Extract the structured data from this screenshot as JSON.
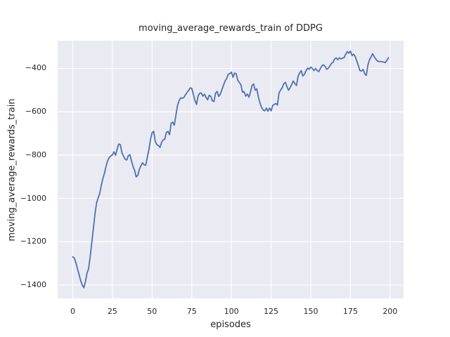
{
  "chart_data": {
    "type": "line",
    "title": "moving_average_rewards_train of DDPG",
    "xlabel": "episodes",
    "ylabel": "moving_average_rewards_train",
    "x_ticks": [
      0,
      25,
      50,
      75,
      100,
      125,
      150,
      175,
      200
    ],
    "y_ticks": [
      -400,
      -600,
      -800,
      -1000,
      -1200,
      -1400
    ],
    "xlim": [
      -9.5,
      208.5
    ],
    "ylim": [
      -1462,
      -272
    ],
    "grid": true,
    "legend": "none",
    "line_color": "#4c72b0",
    "style": {
      "axes_background": "#eaeaf2",
      "grid_color": "#ffffff",
      "text_color": "#262626",
      "figure_background": "#ffffff"
    },
    "series": [
      {
        "name": "moving_average_rewards_train",
        "x_start": 0,
        "x_step": 1,
        "values": [
          -1270,
          -1276,
          -1298,
          -1325,
          -1352,
          -1380,
          -1400,
          -1413,
          -1385,
          -1345,
          -1325,
          -1268,
          -1205,
          -1140,
          -1075,
          -1022,
          -998,
          -978,
          -940,
          -908,
          -884,
          -852,
          -826,
          -812,
          -804,
          -799,
          -785,
          -801,
          -772,
          -749,
          -752,
          -790,
          -805,
          -819,
          -823,
          -803,
          -799,
          -826,
          -852,
          -872,
          -901,
          -893,
          -866,
          -849,
          -836,
          -845,
          -847,
          -810,
          -775,
          -729,
          -697,
          -690,
          -737,
          -752,
          -756,
          -765,
          -742,
          -730,
          -727,
          -695,
          -691,
          -706,
          -653,
          -648,
          -662,
          -618,
          -572,
          -549,
          -536,
          -538,
          -535,
          -522,
          -512,
          -502,
          -490,
          -492,
          -520,
          -548,
          -566,
          -527,
          -515,
          -513,
          -528,
          -519,
          -533,
          -545,
          -524,
          -529,
          -549,
          -553,
          -514,
          -506,
          -529,
          -519,
          -498,
          -478,
          -458,
          -446,
          -427,
          -424,
          -417,
          -441,
          -421,
          -425,
          -455,
          -465,
          -476,
          -510,
          -507,
          -528,
          -518,
          -533,
          -510,
          -478,
          -472,
          -501,
          -494,
          -532,
          -560,
          -580,
          -592,
          -596,
          -583,
          -598,
          -583,
          -596,
          -571,
          -566,
          -562,
          -569,
          -513,
          -500,
          -490,
          -470,
          -464,
          -484,
          -501,
          -489,
          -474,
          -458,
          -470,
          -479,
          -437,
          -420,
          -410,
          -435,
          -428,
          -410,
          -398,
          -404,
          -394,
          -400,
          -410,
          -400,
          -409,
          -415,
          -401,
          -388,
          -383,
          -391,
          -404,
          -399,
          -389,
          -377,
          -372,
          -357,
          -351,
          -360,
          -351,
          -356,
          -352,
          -350,
          -335,
          -322,
          -330,
          -320,
          -341,
          -334,
          -345,
          -365,
          -387,
          -410,
          -412,
          -404,
          -425,
          -432,
          -385,
          -360,
          -347,
          -332,
          -346,
          -357,
          -366,
          -368,
          -368,
          -369,
          -371,
          -373,
          -362,
          -350
        ]
      }
    ]
  }
}
